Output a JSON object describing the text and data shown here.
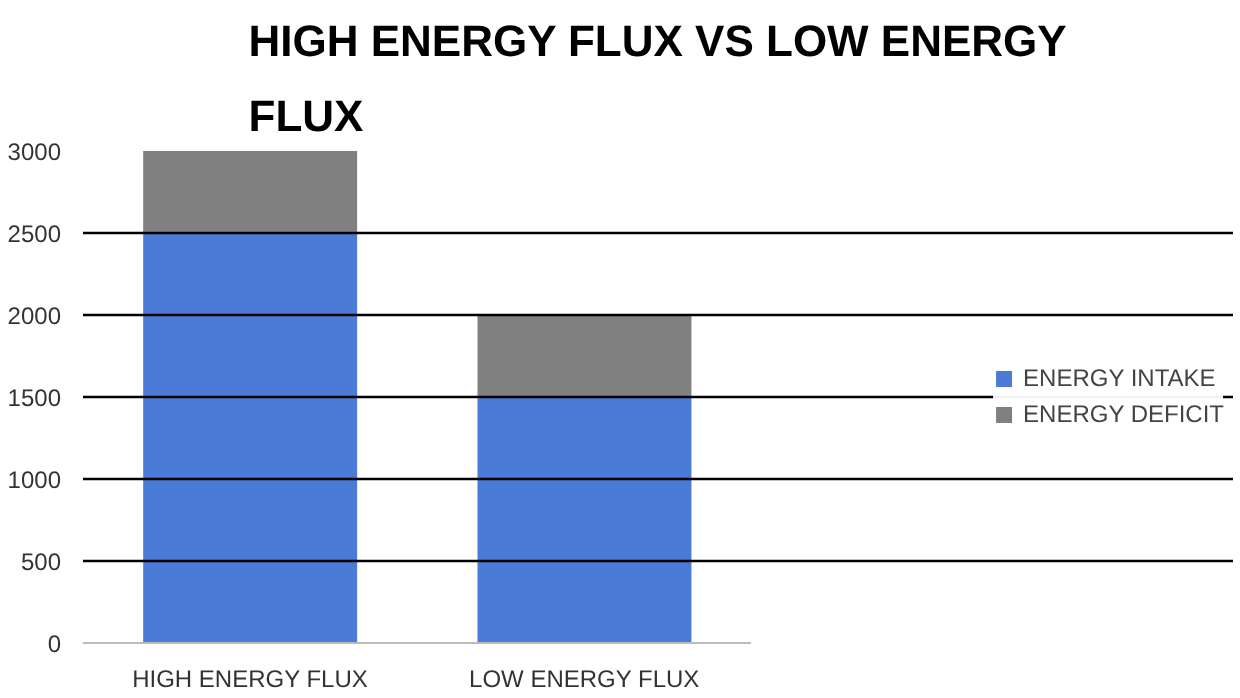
{
  "chart_data": {
    "type": "bar",
    "title": "HIGH ENERGY FLUX VS LOW ENERGY FLUX",
    "categories": [
      "HIGH ENERGY FLUX",
      "LOW ENERGY FLUX"
    ],
    "stacked": true,
    "series": [
      {
        "name": "ENERGY INTAKE",
        "color": "#4a7bd6",
        "values": [
          2500,
          1500
        ]
      },
      {
        "name": "ENERGY DEFICIT",
        "color": "#808080",
        "values": [
          500,
          500
        ]
      }
    ],
    "ylim": [
      0,
      3000
    ],
    "yticks": [
      0,
      500,
      1000,
      1500,
      2000,
      2500,
      3000
    ],
    "grid": "y",
    "legend": "right"
  }
}
